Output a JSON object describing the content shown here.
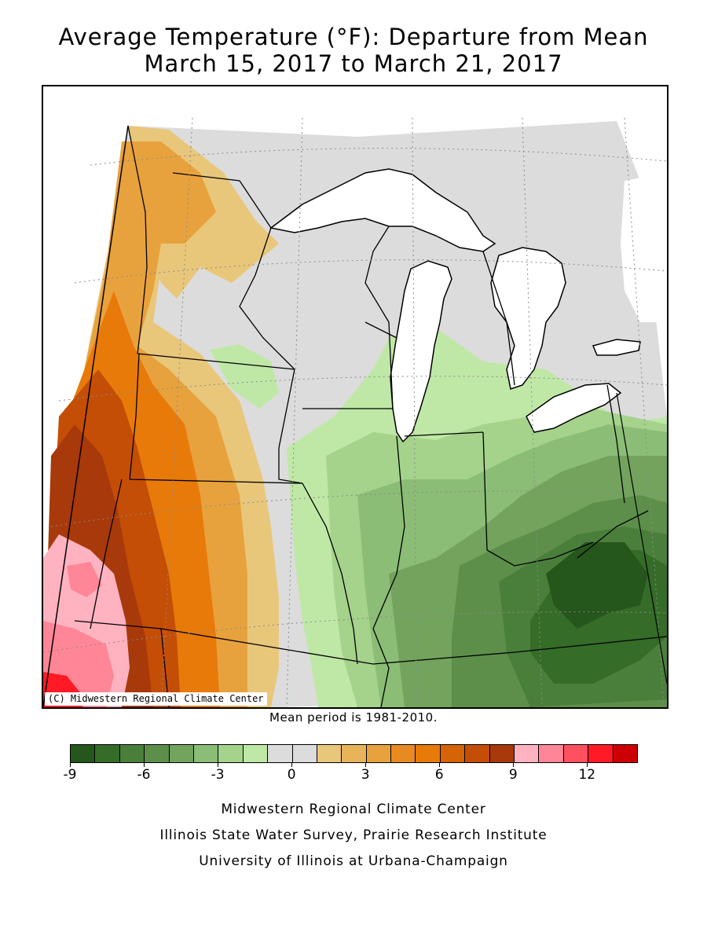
{
  "title": {
    "line1": "Average Temperature (°F): Departure from Mean",
    "line2": "March 15, 2017 to March 21, 2017"
  },
  "map": {
    "region": "Midwest US",
    "copyright": "(C) Midwestern Regional Climate Center",
    "lake_color": "#ffffff",
    "border_color": "#000000",
    "graticule": "dotted"
  },
  "mean_period": "Mean period is 1981-2010.",
  "legend": {
    "colors": [
      "#25561c",
      "#356c28",
      "#4a7f3b",
      "#5d8f4a",
      "#73a35d",
      "#8bbd76",
      "#a5d38c",
      "#bfe8a6",
      "#dcdcdc",
      "#dcdcdc",
      "#e9c77a",
      "#e8b45a",
      "#e8a23d",
      "#e88a22",
      "#e87a0a",
      "#d46406",
      "#c44e06",
      "#a8390a",
      "#ffb3c1",
      "#ff8696",
      "#ff5060",
      "#ff1a26",
      "#cc0000"
    ],
    "labels": [
      "-9",
      "-6",
      "-3",
      "0",
      "3",
      "6",
      "9",
      "12"
    ],
    "min": -9,
    "max": 14,
    "step": 1
  },
  "credits": {
    "line1": "Midwestern Regional Climate Center",
    "line2": "Illinois State Water Survey, Prairie Research Institute",
    "line3": "University of Illinois at Urbana-Champaign"
  }
}
